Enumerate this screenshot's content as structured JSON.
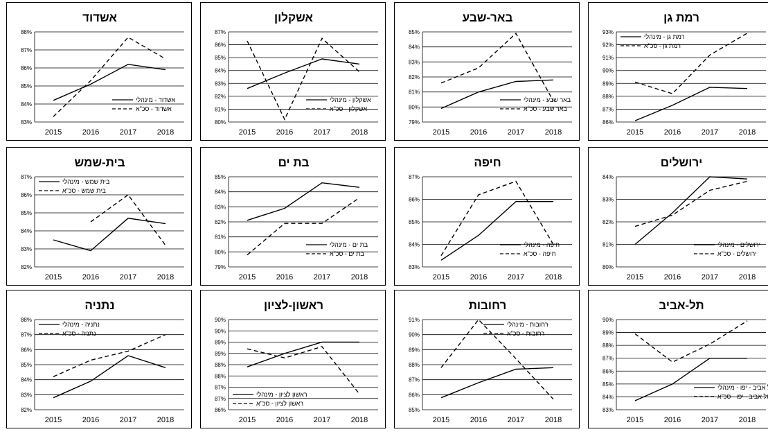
{
  "chart_data": [
    {
      "type": "line",
      "title": "אשדוד",
      "categories": [
        "2015",
        "2016",
        "2017",
        "2018"
      ],
      "yticks": [
        "88%",
        "87%",
        "86%",
        "85%",
        "84%",
        "83%"
      ],
      "ylim": [
        83,
        88
      ],
      "legend": "bottom-right",
      "series": [
        {
          "name": "אשדוד - מינהלי",
          "style": "solid",
          "values": [
            84.2,
            85.1,
            86.2,
            85.9
          ]
        },
        {
          "name": "אשדוד - סכ\"א",
          "style": "dashed",
          "values": [
            83.3,
            85.3,
            87.7,
            86.5
          ]
        }
      ]
    },
    {
      "type": "line",
      "title": "אשקלון",
      "categories": [
        "2015",
        "2016",
        "2017",
        "2018"
      ],
      "yticks": [
        "87%",
        "86%",
        "85%",
        "84%",
        "83%",
        "82%",
        "81%",
        "80%"
      ],
      "ylim": [
        80,
        87
      ],
      "legend": "bottom-right",
      "series": [
        {
          "name": "אשקלון - מינהלי",
          "style": "solid",
          "values": [
            82.6,
            83.8,
            84.9,
            84.5
          ]
        },
        {
          "name": "אשקלון - סכ\"א",
          "style": "dashed",
          "values": [
            86.3,
            80.2,
            86.5,
            83.9
          ]
        }
      ]
    },
    {
      "type": "line",
      "title": "באר-שבע",
      "categories": [
        "2015",
        "2016",
        "2017",
        "2018"
      ],
      "yticks": [
        "85%",
        "84%",
        "83%",
        "82%",
        "81%",
        "80%",
        "79%"
      ],
      "ylim": [
        79,
        85
      ],
      "legend": "bottom-right",
      "series": [
        {
          "name": "באר שבע - מינהלי",
          "style": "solid",
          "values": [
            79.9,
            81.0,
            81.7,
            81.8
          ]
        },
        {
          "name": "באר שבע - סכ\"א",
          "style": "dashed",
          "values": [
            81.6,
            82.6,
            84.9,
            80.4
          ]
        }
      ]
    },
    {
      "type": "line",
      "title": "רמת גן",
      "categories": [
        "2015",
        "2016",
        "2017",
        "2018"
      ],
      "yticks": [
        "93%",
        "92%",
        "91%",
        "90%",
        "89%",
        "88%",
        "87%",
        "86%"
      ],
      "ylim": [
        86,
        93
      ],
      "legend": "top-left",
      "series": [
        {
          "name": "רמת גן - מינהלי",
          "style": "solid",
          "values": [
            86.1,
            87.3,
            88.7,
            88.6
          ]
        },
        {
          "name": "רמת גן - סכ\"א",
          "style": "dashed",
          "values": [
            89.1,
            88.2,
            91.2,
            92.9
          ]
        }
      ]
    },
    {
      "type": "line",
      "title": "בית-שמש",
      "categories": [
        "2015",
        "2016",
        "2017",
        "2018"
      ],
      "yticks": [
        "87%",
        "86%",
        "85%",
        "84%",
        "83%",
        "82%"
      ],
      "ylim": [
        82,
        87
      ],
      "legend": "top-left",
      "series": [
        {
          "name": "בית שמש - מינהלי",
          "style": "solid",
          "values": [
            83.5,
            82.9,
            84.7,
            84.4
          ]
        },
        {
          "name": "בית שמש - סכ\"א",
          "style": "dashed",
          "values": [
            null,
            84.5,
            86.0,
            83.2
          ]
        }
      ]
    },
    {
      "type": "line",
      "title": "בת ים",
      "categories": [
        "2015",
        "2016",
        "2017",
        "2018"
      ],
      "yticks": [
        "85%",
        "84%",
        "83%",
        "82%",
        "81%",
        "80%",
        "79%"
      ],
      "ylim": [
        79,
        85
      ],
      "legend": "bottom-right",
      "series": [
        {
          "name": "בת ים - מינהלי",
          "style": "solid",
          "values": [
            82.1,
            82.9,
            84.6,
            84.3
          ]
        },
        {
          "name": "בת ים - סכ\"א",
          "style": "dashed",
          "values": [
            79.8,
            81.9,
            81.9,
            83.6
          ]
        }
      ]
    },
    {
      "type": "line",
      "title": "חיפה",
      "categories": [
        "2015",
        "2016",
        "2017",
        "2018"
      ],
      "yticks": [
        "87%",
        "86%",
        "85%",
        "84%",
        "83%"
      ],
      "ylim": [
        83,
        87
      ],
      "legend": "bottom-right",
      "series": [
        {
          "name": "חיפה - מינהלי",
          "style": "solid",
          "values": [
            83.3,
            84.4,
            85.9,
            85.9
          ]
        },
        {
          "name": "חיפה - סכ\"א",
          "style": "dashed",
          "values": [
            83.5,
            86.2,
            86.8,
            84.0
          ]
        }
      ]
    },
    {
      "type": "line",
      "title": "ירושלים",
      "categories": [
        "2015",
        "2016",
        "2017",
        "2018"
      ],
      "yticks": [
        "84%",
        "83%",
        "82%",
        "81%",
        "80%"
      ],
      "ylim": [
        80,
        84
      ],
      "legend": "bottom-right",
      "series": [
        {
          "name": "ירושלים - מינהלי",
          "style": "solid",
          "values": [
            81.0,
            82.4,
            84.0,
            83.9
          ]
        },
        {
          "name": "ירושלים - סכ\"א",
          "style": "dashed",
          "values": [
            81.8,
            82.3,
            83.4,
            83.8
          ]
        }
      ]
    },
    {
      "type": "line",
      "title": "נתניה",
      "categories": [
        "2015",
        "2016",
        "2017",
        "2018"
      ],
      "yticks": [
        "88%",
        "87%",
        "86%",
        "85%",
        "84%",
        "83%",
        "82%"
      ],
      "ylim": [
        82,
        88
      ],
      "legend": "top-left",
      "series": [
        {
          "name": "נתניה - מינהלי",
          "style": "solid",
          "values": [
            82.8,
            83.9,
            85.6,
            84.8
          ]
        },
        {
          "name": "נתניה - סכ\"א",
          "style": "dashed",
          "values": [
            84.2,
            85.3,
            85.9,
            87.0
          ]
        }
      ]
    },
    {
      "type": "line",
      "title": "ראשון-לציון",
      "categories": [
        "2015",
        "2016",
        "2017",
        "2018"
      ],
      "yticks": [
        "90%",
        "90%",
        "89%",
        "89%",
        "88%",
        "88%",
        "87%",
        "87%",
        "86%"
      ],
      "ylim": [
        86,
        90
      ],
      "legend": "bottom-left",
      "series": [
        {
          "name": "ראשון לציון - מינהלי",
          "style": "solid",
          "values": [
            87.9,
            88.5,
            89.0,
            89.0
          ]
        },
        {
          "name": "ראשון לציון - סכ\"א",
          "style": "dashed",
          "values": [
            88.7,
            88.3,
            88.8,
            86.7
          ]
        }
      ]
    },
    {
      "type": "line",
      "title": "רחובות",
      "categories": [
        "2015",
        "2016",
        "2017",
        "2018"
      ],
      "yticks": [
        "91%",
        "90%",
        "89%",
        "88%",
        "87%",
        "86%",
        "85%"
      ],
      "ylim": [
        85,
        91
      ],
      "legend": "top-right",
      "series": [
        {
          "name": "רחובות - מינהלי",
          "style": "solid",
          "values": [
            85.8,
            86.8,
            87.7,
            87.8
          ]
        },
        {
          "name": "רחובות - סכ\"א",
          "style": "dashed",
          "values": [
            87.8,
            91.0,
            88.4,
            85.7
          ]
        }
      ]
    },
    {
      "type": "line",
      "title": "תל-אביב",
      "categories": [
        "2015",
        "2016",
        "2017",
        "2018"
      ],
      "yticks": [
        "90%",
        "89%",
        "88%",
        "87%",
        "86%",
        "85%",
        "84%",
        "83%"
      ],
      "ylim": [
        83,
        90
      ],
      "legend": "bottom-right",
      "series": [
        {
          "name": "תל אביב - יפו - מינהלי",
          "style": "solid",
          "values": [
            83.7,
            85.0,
            87.0,
            87.0
          ]
        },
        {
          "name": "תל אביב - יפו - סכ\"א",
          "style": "dashed",
          "values": [
            88.9,
            86.7,
            88.1,
            89.9
          ]
        }
      ]
    }
  ]
}
